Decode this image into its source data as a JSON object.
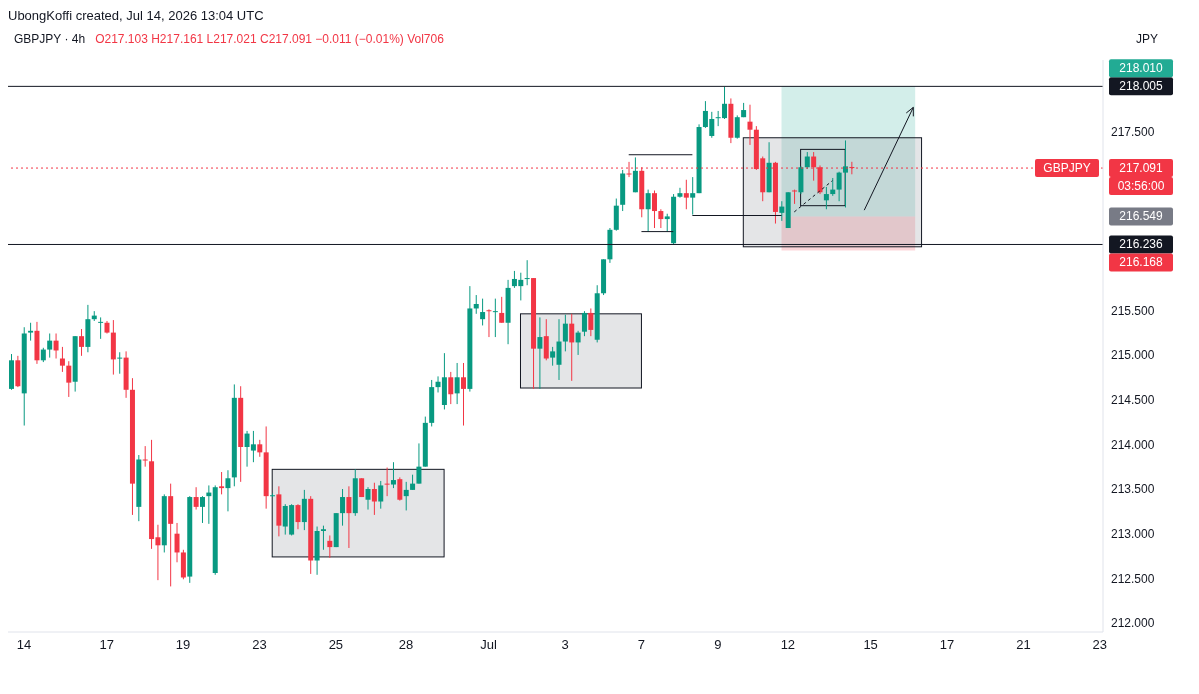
{
  "chart_data": {
    "type": "candlestick",
    "title": "GBPJPY · 4h",
    "subtitle": "O217.103  H217.161  L217.021  C217.091  −0.011 (−0.01%)  Vol706",
    "ylabel": "JPY",
    "categories": [
      null,
      null,
      "14",
      null,
      null,
      null,
      null,
      null,
      null,
      null,
      null,
      null,
      null,
      null,
      null,
      "17",
      null,
      null,
      null,
      null,
      null,
      null,
      null,
      null,
      null,
      null,
      null,
      "19",
      null,
      null,
      null,
      null,
      null,
      null,
      null,
      null,
      null,
      null,
      null,
      "23",
      null,
      null,
      null,
      null,
      null,
      null,
      null,
      null,
      null,
      null,
      null,
      "25",
      null,
      null,
      null,
      null,
      null,
      null,
      null,
      null,
      null,
      null,
      "28",
      null,
      null,
      null,
      null,
      null,
      null,
      null,
      null,
      null,
      null,
      null,
      null,
      "Jul",
      null,
      null,
      null,
      null,
      null,
      null,
      null,
      null,
      null,
      null,
      null,
      "3",
      null,
      null,
      null,
      null,
      null,
      null,
      null,
      null,
      null,
      null,
      null,
      "7",
      null,
      null,
      null,
      null,
      null,
      null,
      null,
      null,
      null,
      null,
      null,
      "9",
      null,
      null,
      null,
      null,
      null,
      null,
      null,
      null,
      null,
      null,
      "12",
      null,
      null,
      null,
      null,
      null,
      null,
      null,
      null,
      null,
      null,
      null,
      null,
      "15",
      null,
      null,
      null,
      null,
      null,
      null,
      null,
      null,
      null,
      null,
      null,
      "17",
      null,
      null,
      null,
      null,
      null,
      null,
      null,
      null,
      null,
      null,
      null,
      "21",
      null,
      null,
      null,
      null,
      null,
      null,
      null,
      null,
      null,
      null,
      null,
      "23"
    ],
    "ohlc": [
      [
        214.62,
        215.01,
        214.61,
        214.94
      ],
      [
        214.94,
        214.99,
        214.64,
        214.65
      ],
      [
        214.57,
        215.31,
        214.21,
        215.24
      ],
      [
        215.25,
        215.36,
        215.16,
        215.27
      ],
      [
        215.27,
        215.37,
        214.9,
        214.94
      ],
      [
        214.94,
        215.08,
        214.92,
        215.06
      ],
      [
        215.06,
        215.24,
        214.97,
        215.16
      ],
      [
        215.16,
        215.24,
        214.96,
        215.05
      ],
      [
        214.96,
        215.09,
        214.81,
        214.88
      ],
      [
        214.88,
        214.93,
        214.53,
        214.69
      ],
      [
        214.7,
        215.21,
        214.59,
        215.21
      ],
      [
        215.21,
        215.29,
        214.99,
        215.09
      ],
      [
        215.09,
        215.56,
        215.03,
        215.4
      ],
      [
        215.4,
        215.49,
        215.38,
        215.44
      ],
      [
        215.36,
        215.42,
        215.18,
        215.37
      ],
      [
        215.36,
        215.38,
        215.24,
        215.25
      ],
      [
        215.25,
        215.39,
        214.78,
        214.95
      ],
      [
        214.96,
        215.03,
        214.79,
        214.97
      ],
      [
        214.97,
        215.04,
        214.52,
        214.61
      ],
      [
        214.61,
        214.74,
        213.21,
        213.56
      ],
      [
        213.3,
        213.88,
        213.14,
        213.83
      ],
      [
        213.83,
        213.98,
        213.75,
        213.82
      ],
      [
        213.81,
        214.05,
        212.83,
        212.94
      ],
      [
        212.96,
        213.1,
        212.48,
        212.87
      ],
      [
        212.87,
        213.44,
        212.79,
        213.42
      ],
      [
        213.42,
        213.56,
        212.41,
        213.11
      ],
      [
        213.0,
        213.12,
        212.68,
        212.79
      ],
      [
        212.79,
        212.82,
        212.49,
        212.51
      ],
      [
        212.52,
        213.42,
        212.45,
        213.41
      ],
      [
        213.41,
        213.52,
        213.27,
        213.3
      ],
      [
        213.3,
        213.42,
        213.12,
        213.41
      ],
      [
        213.42,
        213.54,
        213.11,
        213.46
      ],
      [
        212.56,
        213.54,
        212.54,
        213.52
      ],
      [
        213.53,
        213.69,
        213.44,
        213.51
      ],
      [
        213.51,
        213.71,
        213.25,
        213.62
      ],
      [
        213.63,
        214.67,
        213.53,
        214.52
      ],
      [
        214.52,
        214.65,
        213.58,
        213.97
      ],
      [
        213.97,
        214.15,
        213.75,
        214.12
      ],
      [
        213.93,
        214.15,
        213.8,
        214.0
      ],
      [
        214.0,
        214.05,
        213.86,
        213.91
      ],
      [
        213.91,
        214.2,
        213.28,
        213.42
      ],
      [
        213.42,
        213.45,
        213.41,
        213.43
      ],
      [
        213.44,
        213.53,
        212.97,
        213.09
      ],
      [
        213.08,
        213.33,
        212.99,
        213.31
      ],
      [
        212.99,
        213.33,
        212.98,
        213.32
      ],
      [
        213.32,
        213.33,
        213.05,
        213.13
      ],
      [
        213.13,
        213.49,
        213.04,
        213.39
      ],
      [
        213.39,
        213.42,
        212.55,
        212.7
      ],
      [
        212.7,
        213.08,
        212.54,
        213.03
      ],
      [
        213.03,
        213.09,
        212.82,
        213.05
      ],
      [
        212.92,
        212.98,
        212.73,
        212.85
      ],
      [
        212.85,
        213.23,
        212.85,
        213.23
      ],
      [
        213.23,
        213.5,
        213.09,
        213.41
      ],
      [
        213.41,
        213.53,
        212.84,
        213.23
      ],
      [
        213.23,
        213.72,
        213.2,
        213.62
      ],
      [
        213.62,
        213.62,
        213.41,
        213.41
      ],
      [
        213.38,
        213.52,
        213.27,
        213.5
      ],
      [
        213.5,
        213.57,
        213.21,
        213.36
      ],
      [
        213.36,
        213.59,
        213.28,
        213.54
      ],
      [
        213.56,
        213.74,
        213.42,
        213.55
      ],
      [
        213.55,
        213.8,
        213.51,
        213.6
      ],
      [
        213.61,
        213.63,
        213.37,
        213.38
      ],
      [
        213.42,
        213.58,
        213.26,
        213.49
      ],
      [
        213.49,
        213.66,
        213.49,
        213.56
      ],
      [
        213.56,
        214.01,
        213.56,
        213.75
      ],
      [
        213.75,
        214.31,
        213.75,
        214.24
      ],
      [
        214.24,
        214.72,
        214.2,
        214.64
      ],
      [
        214.64,
        214.76,
        214.58,
        214.7
      ],
      [
        214.44,
        215.02,
        214.39,
        214.75
      ],
      [
        214.75,
        214.81,
        214.45,
        214.56
      ],
      [
        214.57,
        214.91,
        214.45,
        214.75
      ],
      [
        214.75,
        214.91,
        214.21,
        214.62
      ],
      [
        214.62,
        215.77,
        214.59,
        215.52
      ],
      [
        215.52,
        215.67,
        215.46,
        215.57
      ],
      [
        215.4,
        215.63,
        215.33,
        215.48
      ],
      [
        215.5,
        215.51,
        215.2,
        215.49
      ],
      [
        215.48,
        215.63,
        215.2,
        215.49
      ],
      [
        215.47,
        215.65,
        215.36,
        215.36
      ],
      [
        215.36,
        215.84,
        215.12,
        215.75
      ],
      [
        215.77,
        215.94,
        215.75,
        215.85
      ],
      [
        215.77,
        215.92,
        215.61,
        215.84
      ],
      [
        215.85,
        216.06,
        215.78,
        215.86
      ],
      [
        215.86,
        215.86,
        214.62,
        215.07
      ],
      [
        215.07,
        215.42,
        214.62,
        215.2
      ],
      [
        215.21,
        215.4,
        214.94,
        214.96
      ],
      [
        214.97,
        215.09,
        214.88,
        215.04
      ],
      [
        214.89,
        215.4,
        214.72,
        215.15
      ],
      [
        215.15,
        215.45,
        215.04,
        215.35
      ],
      [
        215.35,
        215.46,
        214.71,
        215.14
      ],
      [
        215.14,
        215.27,
        215.0,
        215.25
      ],
      [
        215.26,
        215.49,
        215.21,
        215.47
      ],
      [
        215.47,
        215.52,
        215.21,
        215.28
      ],
      [
        215.17,
        215.78,
        215.14,
        215.69
      ],
      [
        215.69,
        216.07,
        215.67,
        216.07
      ],
      [
        216.07,
        216.42,
        216.03,
        216.4
      ],
      [
        216.4,
        216.75,
        216.39,
        216.67
      ],
      [
        216.68,
        217.07,
        216.61,
        217.03
      ],
      [
        217.03,
        217.16,
        216.99,
        217.02
      ],
      [
        216.82,
        217.21,
        216.82,
        217.06
      ],
      [
        217.06,
        217.1,
        216.54,
        216.63
      ],
      [
        216.63,
        216.85,
        216.38,
        216.81
      ],
      [
        216.81,
        216.84,
        216.42,
        216.61
      ],
      [
        216.61,
        216.63,
        216.42,
        216.52
      ],
      [
        216.52,
        216.58,
        216.38,
        216.55
      ],
      [
        216.25,
        216.8,
        216.24,
        216.77
      ],
      [
        216.77,
        216.87,
        216.76,
        216.81
      ],
      [
        216.81,
        216.96,
        216.63,
        216.76
      ],
      [
        216.76,
        216.99,
        216.57,
        216.81
      ],
      [
        216.81,
        217.58,
        216.81,
        217.55
      ],
      [
        217.55,
        217.84,
        217.54,
        217.73
      ],
      [
        217.45,
        217.72,
        217.43,
        217.64
      ],
      [
        217.65,
        217.73,
        217.56,
        217.66
      ],
      [
        217.65,
        218.0,
        217.64,
        217.81
      ],
      [
        217.81,
        217.87,
        217.37,
        217.43
      ],
      [
        217.43,
        217.68,
        217.42,
        217.66
      ],
      [
        217.66,
        217.82,
        217.66,
        217.74
      ],
      [
        217.61,
        217.8,
        217.35,
        217.52
      ],
      [
        217.52,
        217.56,
        217.07,
        217.08
      ],
      [
        217.2,
        217.22,
        216.72,
        216.82
      ],
      [
        216.82,
        217.38,
        216.82,
        217.15
      ],
      [
        217.15,
        217.16,
        216.47,
        216.6
      ],
      [
        216.59,
        216.72,
        216.5,
        216.66
      ],
      [
        216.42,
        216.82,
        216.42,
        216.82
      ],
      [
        216.84,
        216.85,
        216.69,
        216.83
      ],
      [
        216.82,
        217.11,
        216.8,
        217.1
      ],
      [
        217.1,
        217.27,
        217.08,
        217.22
      ],
      [
        217.22,
        217.27,
        216.95,
        217.1
      ],
      [
        217.1,
        217.12,
        216.8,
        216.82
      ],
      [
        216.73,
        216.88,
        216.63,
        216.8
      ],
      [
        216.8,
        216.98,
        216.78,
        216.85
      ],
      [
        216.85,
        217.05,
        216.72,
        217.04
      ],
      [
        217.04,
        217.4,
        216.65,
        217.11
      ],
      [
        217.103,
        217.161,
        217.021,
        217.091
      ],
      null,
      null,
      null,
      null,
      null,
      null,
      null,
      null,
      null,
      null,
      null,
      null,
      null,
      null,
      null,
      null,
      null,
      null,
      null,
      null,
      null,
      null,
      null,
      null,
      null,
      null,
      null,
      null,
      null,
      null,
      null,
      null,
      null,
      null,
      null,
      null,
      null,
      null,
      null
    ],
    "colors": [
      "#089981",
      "#f23645",
      "#089981",
      "#089981",
      "#f23645",
      "#089981",
      "#089981",
      "#f23645",
      "#f23645",
      "#f23645",
      "#089981",
      "#f23645",
      "#089981",
      "#089981",
      "#089981",
      "#f23645",
      "#f23645",
      "#089981",
      "#f23645",
      "#f23645",
      "#089981",
      "#f23645",
      "#f23645",
      "#f23645",
      "#089981",
      "#f23645",
      "#f23645",
      "#f23645",
      "#089981",
      "#f23645",
      "#089981",
      "#089981",
      "#089981",
      "#f23645",
      "#089981",
      "#089981",
      "#f23645",
      "#089981",
      "#089981",
      "#f23645",
      "#f23645",
      "#089981",
      "#f23645",
      "#089981",
      "#089981",
      "#f23645",
      "#089981",
      "#f23645",
      "#089981",
      "#089981",
      "#f23645",
      "#089981",
      "#089981",
      "#f23645",
      "#089981",
      "#f23645",
      "#089981",
      "#f23645",
      "#089981",
      "#f23645",
      "#089981",
      "#f23645",
      "#089981",
      "#089981",
      "#089981",
      "#089981",
      "#089981",
      "#089981",
      "#089981",
      "#f23645",
      "#089981",
      "#f23645",
      "#089981",
      "#089981",
      "#089981",
      "#f23645",
      "#089981",
      "#f23645",
      "#089981",
      "#089981",
      "#089981",
      "#089981",
      "#f23645",
      "#089981",
      "#f23645",
      "#089981",
      "#089981",
      "#089981",
      "#f23645",
      "#089981",
      "#089981",
      "#f23645",
      "#089981",
      "#089981",
      "#089981",
      "#089981",
      "#089981",
      "#f23645",
      "#089981",
      "#f23645",
      "#089981",
      "#f23645",
      "#f23645",
      "#089981",
      "#089981",
      "#089981",
      "#f23645",
      "#089981",
      "#089981",
      "#089981",
      "#089981",
      "#089981",
      "#089981",
      "#f23645",
      "#089981",
      "#089981",
      "#f23645",
      "#f23645",
      "#f23645",
      "#089981",
      "#f23645",
      "#089981",
      "#089981",
      "#f23645",
      "#089981",
      "#089981",
      "#f23645",
      "#f23645",
      "#089981",
      "#089981",
      "#089981",
      "#089981",
      "#f23645",
      null,
      null,
      null,
      null,
      null,
      null,
      null,
      null,
      null,
      null,
      null,
      null,
      null,
      null,
      null,
      null,
      null,
      null,
      null,
      null,
      null,
      null,
      null,
      null,
      null,
      null,
      null,
      null,
      null,
      null,
      null,
      null,
      null,
      null,
      null,
      null,
      null,
      null,
      null
    ],
    "ylim": [
      211.9,
      218.3
    ],
    "yticks": [
      {
        "value": 212,
        "label": "212.000"
      },
      {
        "value": 212.5,
        "label": "212.500"
      },
      {
        "value": 213,
        "label": "213.000"
      },
      {
        "value": 213.5,
        "label": "213.500"
      },
      {
        "value": 214,
        "label": "214.000"
      },
      {
        "value": 214.5,
        "label": "214.500"
      },
      {
        "value": 215,
        "label": "215.000"
      },
      {
        "value": 215.5,
        "label": "215.500"
      },
      {
        "value": 217.5,
        "label": "217.500"
      }
    ],
    "ref_lines": [
      {
        "axis": "y",
        "value": 218.005,
        "label": "218.005",
        "color": "#131722",
        "line_style": "solid"
      },
      {
        "axis": "y",
        "value": 216.236,
        "label": "216.236",
        "color": "#131722",
        "line_style": "solid"
      },
      {
        "axis": "y",
        "value": 217.091,
        "label": "217.091",
        "color": "#f23645",
        "line_style": "dotted"
      }
    ],
    "bands": [
      {
        "axis": "y",
        "from": 216.549,
        "to": 218.01,
        "color": "#22ab94"
      },
      {
        "axis": "y",
        "from": 216.168,
        "to": 216.549,
        "color": "#f23645"
      }
    ],
    "annotations": [
      "UbongKoffi created, Jul 14, 2026 13:04 UTC",
      "GBPJPY",
      "03:56:00",
      "216.549",
      "218.010",
      "216.168"
    ]
  }
}
